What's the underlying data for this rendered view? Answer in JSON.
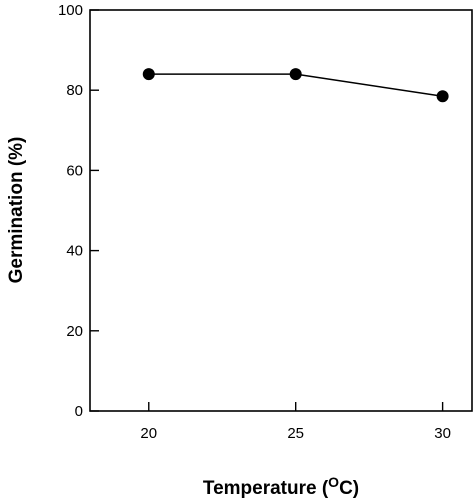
{
  "chart_data": {
    "type": "line",
    "title": "",
    "xlabel": "Temperature (",
    "xlabel_superscript": "O",
    "xlabel_suffix": "C)",
    "ylabel": "Germination (%)",
    "x": [
      20,
      25,
      30
    ],
    "series": [
      {
        "values": [
          84,
          84,
          78.5
        ]
      }
    ],
    "xlim": [
      18,
      31
    ],
    "ylim": [
      0,
      100
    ],
    "xticks": [
      "20",
      "25",
      "30"
    ],
    "yticks": [
      "0",
      "20",
      "40",
      "60",
      "80",
      "100"
    ],
    "grid": false,
    "legend": "none",
    "marker": "filled-circle",
    "colors": {
      "line": "#000000",
      "marker": "#000000",
      "axis": "#000000"
    }
  }
}
